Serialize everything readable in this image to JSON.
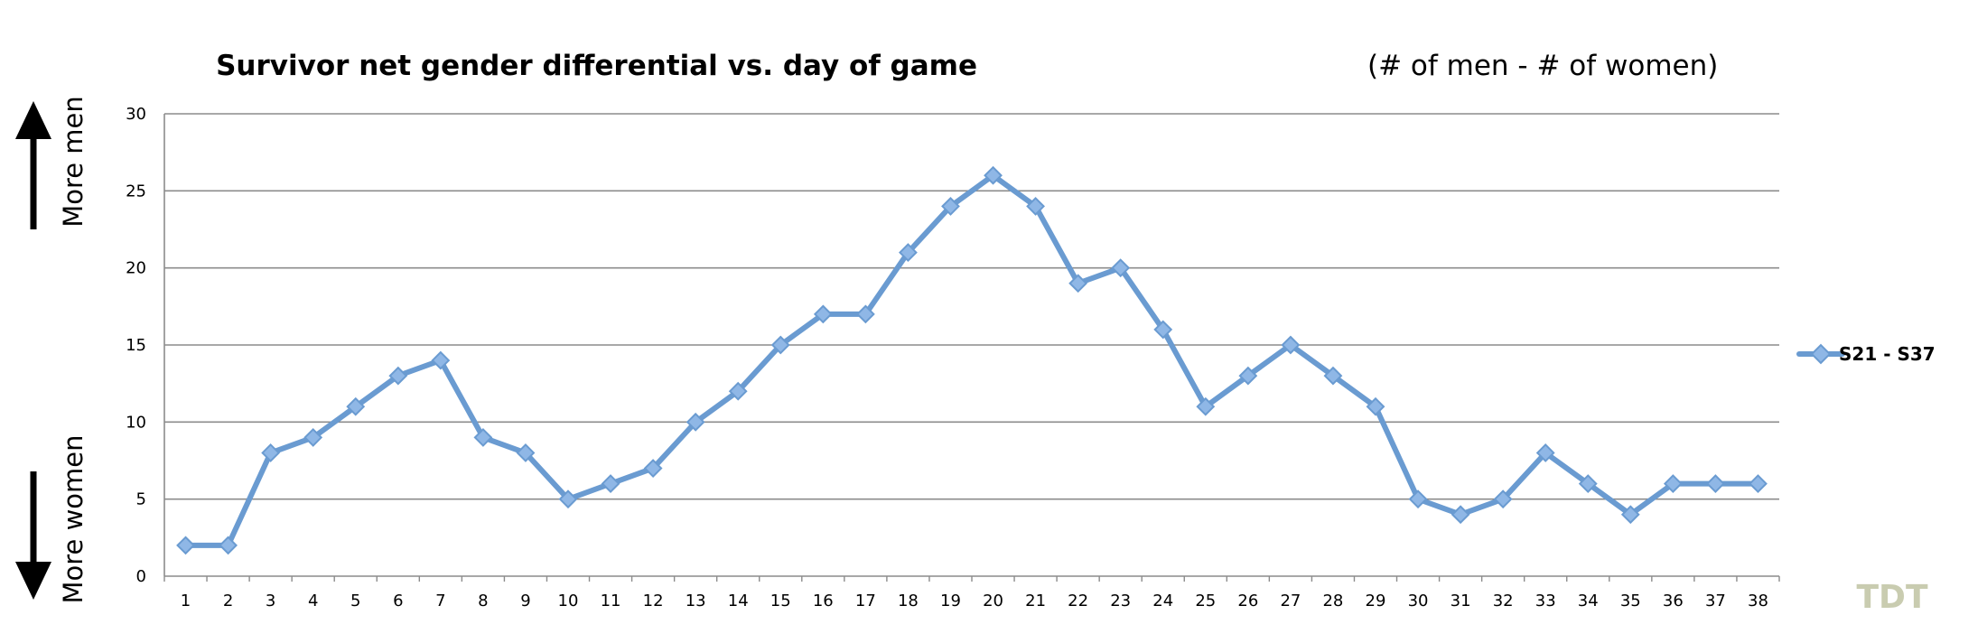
{
  "chart_data": {
    "type": "line",
    "title": "Survivor net gender differential vs. day of game",
    "subtitle": "(# of men - # of women)",
    "xlabel": "",
    "ylabel": "",
    "x": [
      1,
      2,
      3,
      4,
      5,
      6,
      7,
      8,
      9,
      10,
      11,
      12,
      13,
      14,
      15,
      16,
      17,
      18,
      19,
      20,
      21,
      22,
      23,
      24,
      25,
      26,
      27,
      28,
      29,
      30,
      31,
      32,
      33,
      34,
      35,
      36,
      37,
      38
    ],
    "series": [
      {
        "name": "S21 - S37",
        "color": "#6a9bd1",
        "values": [
          2,
          2,
          8,
          9,
          11,
          13,
          14,
          9,
          8,
          5,
          6,
          7,
          10,
          12,
          15,
          17,
          17,
          21,
          24,
          26,
          24,
          19,
          20,
          16,
          11,
          13,
          15,
          13,
          11,
          5,
          4,
          5,
          8,
          6,
          4,
          6,
          6,
          6
        ]
      }
    ],
    "ylim": [
      0,
      30
    ],
    "yticks": [
      0,
      5,
      10,
      15,
      20,
      25,
      30
    ],
    "grid": true,
    "legend_position": "right",
    "annotations": {
      "up_label": "More men",
      "down_label": "More women"
    },
    "watermark": "TDT"
  }
}
